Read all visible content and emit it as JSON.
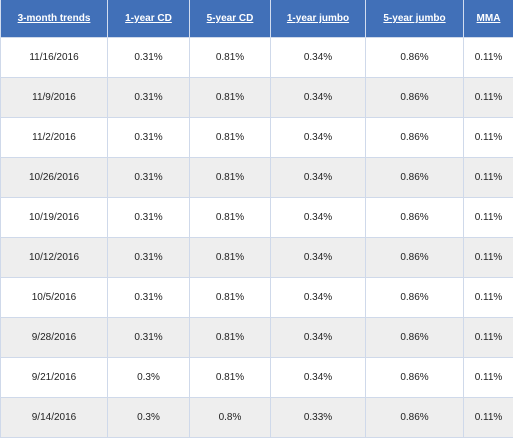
{
  "table": {
    "headers": [
      "3-month trends",
      "1-year CD",
      "5-year CD",
      "1-year jumbo",
      "5-year jumbo",
      "MMA"
    ],
    "rows": [
      [
        "11/16/2016",
        "0.31%",
        "0.81%",
        "0.34%",
        "0.86%",
        "0.11%"
      ],
      [
        "11/9/2016",
        "0.31%",
        "0.81%",
        "0.34%",
        "0.86%",
        "0.11%"
      ],
      [
        "11/2/2016",
        "0.31%",
        "0.81%",
        "0.34%",
        "0.86%",
        "0.11%"
      ],
      [
        "10/26/2016",
        "0.31%",
        "0.81%",
        "0.34%",
        "0.86%",
        "0.11%"
      ],
      [
        "10/19/2016",
        "0.31%",
        "0.81%",
        "0.34%",
        "0.86%",
        "0.11%"
      ],
      [
        "10/12/2016",
        "0.31%",
        "0.81%",
        "0.34%",
        "0.86%",
        "0.11%"
      ],
      [
        "10/5/2016",
        "0.31%",
        "0.81%",
        "0.34%",
        "0.86%",
        "0.11%"
      ],
      [
        "9/28/2016",
        "0.31%",
        "0.81%",
        "0.34%",
        "0.86%",
        "0.11%"
      ],
      [
        "9/21/2016",
        "0.3%",
        "0.81%",
        "0.34%",
        "0.86%",
        "0.11%"
      ],
      [
        "9/14/2016",
        "0.3%",
        "0.8%",
        "0.33%",
        "0.86%",
        "0.11%"
      ]
    ]
  },
  "colors": {
    "header_background": "#4170b8",
    "header_text": "#ffffff",
    "stripe_background": "#eeeeee",
    "border": "#cfd9ea"
  }
}
